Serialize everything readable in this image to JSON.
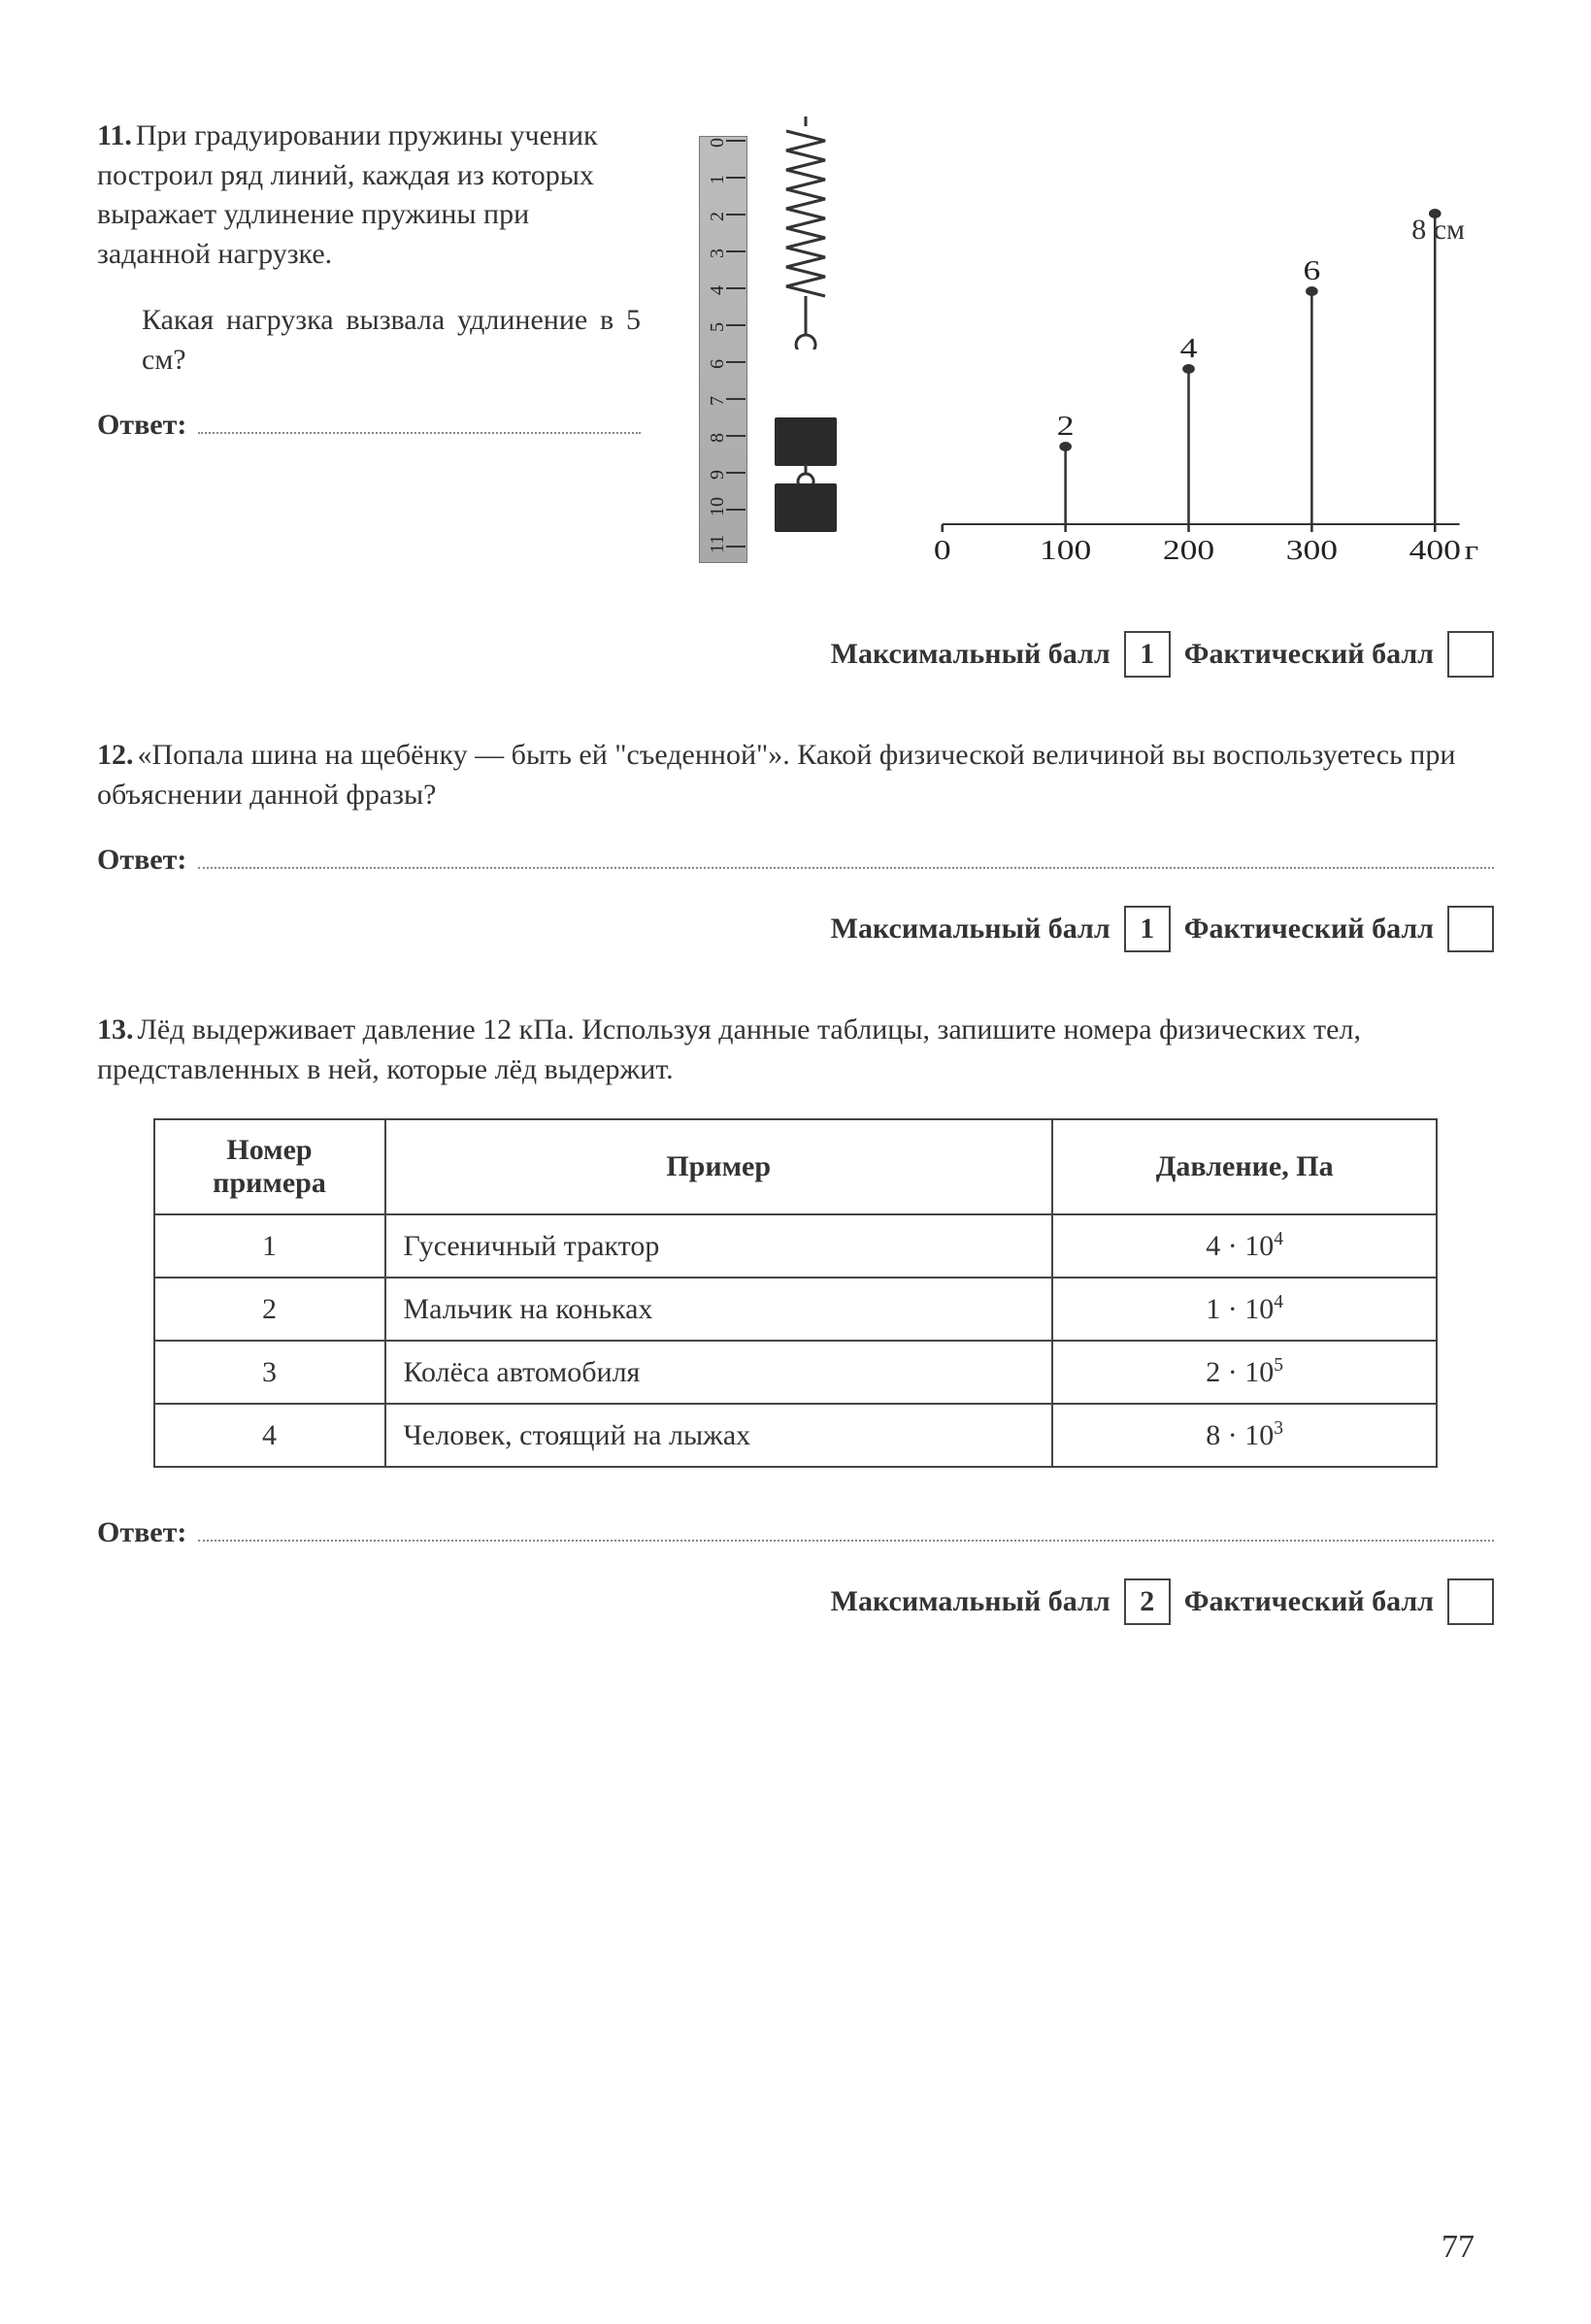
{
  "page_number": "77",
  "answer_label": "Ответ:",
  "max_score_label": "Максимальный балл",
  "actual_score_label": "Фактический балл",
  "q11": {
    "number": "11.",
    "text1": "При градуировании пружины ученик построил ряд линий, каждая из которых выражает удлинение пружины при заданной нагрузке.",
    "text2": "Какая нагрузка вызвала удлинение в 5 см?",
    "max_score": "1",
    "diagram": {
      "ruler_ticks": [
        "0",
        "1",
        "2",
        "3",
        "4",
        "5",
        "6",
        "7",
        "8",
        "9",
        "10",
        "11"
      ],
      "y_unit": "8 см",
      "y_values": [
        "2",
        "4",
        "6"
      ],
      "x_values": [
        "0",
        "100",
        "200",
        "300",
        "400"
      ],
      "x_unit": "г",
      "data_points": [
        {
          "x": 100,
          "y": 2
        },
        {
          "x": 200,
          "y": 4
        },
        {
          "x": 300,
          "y": 6
        },
        {
          "x": 400,
          "y": 8
        }
      ],
      "colors": {
        "ruler_bg": "#b5b5b5",
        "spring": "#333333",
        "weight": "#2a2a2a",
        "axis": "#333333",
        "point": "#333333"
      },
      "xlim": [
        0,
        400
      ],
      "ylim": [
        0,
        8
      ]
    }
  },
  "q12": {
    "number": "12.",
    "text": "«Попала шина на щебёнку — быть ей \"съеденной\"». Какой физической величиной вы воспользуетесь при объяснении данной фразы?",
    "max_score": "1"
  },
  "q13": {
    "number": "13.",
    "text": "Лёд выдерживает давление 12 кПа. Используя данные таблицы, запишите номера физических тел, представленных в ней, которые лёд выдержит.",
    "max_score": "2",
    "table": {
      "columns": [
        "Номер примера",
        "Пример",
        "Давление, Па"
      ],
      "rows": [
        {
          "num": "1",
          "example": "Гусеничный трактор",
          "pressure_base": "4 · 10",
          "pressure_exp": "4"
        },
        {
          "num": "2",
          "example": "Мальчик на коньках",
          "pressure_base": "1 · 10",
          "pressure_exp": "4"
        },
        {
          "num": "3",
          "example": "Колёса автомобиля",
          "pressure_base": "2 · 10",
          "pressure_exp": "5"
        },
        {
          "num": "4",
          "example": "Человек, стоящий на лыжах",
          "pressure_base": "8 · 10",
          "pressure_exp": "3"
        }
      ],
      "col_widths": [
        "18%",
        "52%",
        "30%"
      ],
      "border_color": "#444444"
    }
  }
}
